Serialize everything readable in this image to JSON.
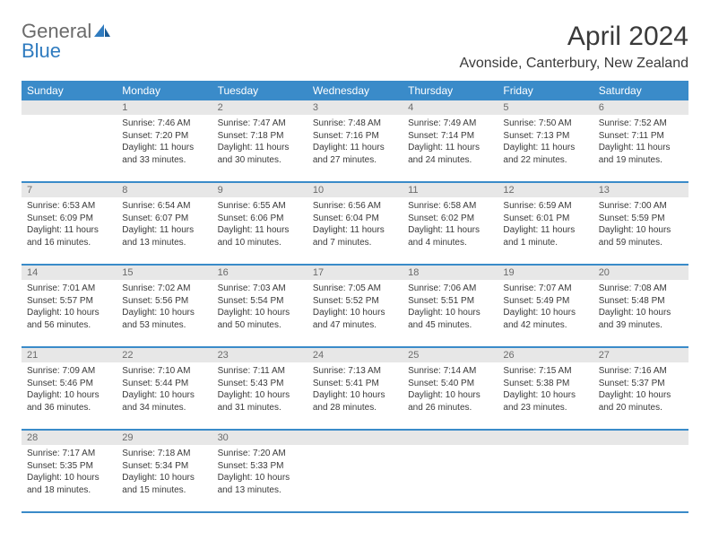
{
  "logo": {
    "general": "General",
    "blue": "Blue"
  },
  "title": "April 2024",
  "location": "Avonside, Canterbury, New Zealand",
  "colors": {
    "header_bg": "#3a8bc9",
    "header_text": "#ffffff",
    "daynum_bg": "#e7e7e7",
    "daynum_text": "#6b6b6b",
    "text": "#3a3a3a",
    "divider": "#3a8bc9"
  },
  "day_names": [
    "Sunday",
    "Monday",
    "Tuesday",
    "Wednesday",
    "Thursday",
    "Friday",
    "Saturday"
  ],
  "weeks": [
    {
      "nums": [
        "",
        "1",
        "2",
        "3",
        "4",
        "5",
        "6"
      ],
      "cells": [
        {
          "sunrise": "",
          "sunset": "",
          "daylight1": "",
          "daylight2": ""
        },
        {
          "sunrise": "Sunrise: 7:46 AM",
          "sunset": "Sunset: 7:20 PM",
          "daylight1": "Daylight: 11 hours",
          "daylight2": "and 33 minutes."
        },
        {
          "sunrise": "Sunrise: 7:47 AM",
          "sunset": "Sunset: 7:18 PM",
          "daylight1": "Daylight: 11 hours",
          "daylight2": "and 30 minutes."
        },
        {
          "sunrise": "Sunrise: 7:48 AM",
          "sunset": "Sunset: 7:16 PM",
          "daylight1": "Daylight: 11 hours",
          "daylight2": "and 27 minutes."
        },
        {
          "sunrise": "Sunrise: 7:49 AM",
          "sunset": "Sunset: 7:14 PM",
          "daylight1": "Daylight: 11 hours",
          "daylight2": "and 24 minutes."
        },
        {
          "sunrise": "Sunrise: 7:50 AM",
          "sunset": "Sunset: 7:13 PM",
          "daylight1": "Daylight: 11 hours",
          "daylight2": "and 22 minutes."
        },
        {
          "sunrise": "Sunrise: 7:52 AM",
          "sunset": "Sunset: 7:11 PM",
          "daylight1": "Daylight: 11 hours",
          "daylight2": "and 19 minutes."
        }
      ]
    },
    {
      "nums": [
        "7",
        "8",
        "9",
        "10",
        "11",
        "12",
        "13"
      ],
      "cells": [
        {
          "sunrise": "Sunrise: 6:53 AM",
          "sunset": "Sunset: 6:09 PM",
          "daylight1": "Daylight: 11 hours",
          "daylight2": "and 16 minutes."
        },
        {
          "sunrise": "Sunrise: 6:54 AM",
          "sunset": "Sunset: 6:07 PM",
          "daylight1": "Daylight: 11 hours",
          "daylight2": "and 13 minutes."
        },
        {
          "sunrise": "Sunrise: 6:55 AM",
          "sunset": "Sunset: 6:06 PM",
          "daylight1": "Daylight: 11 hours",
          "daylight2": "and 10 minutes."
        },
        {
          "sunrise": "Sunrise: 6:56 AM",
          "sunset": "Sunset: 6:04 PM",
          "daylight1": "Daylight: 11 hours",
          "daylight2": "and 7 minutes."
        },
        {
          "sunrise": "Sunrise: 6:58 AM",
          "sunset": "Sunset: 6:02 PM",
          "daylight1": "Daylight: 11 hours",
          "daylight2": "and 4 minutes."
        },
        {
          "sunrise": "Sunrise: 6:59 AM",
          "sunset": "Sunset: 6:01 PM",
          "daylight1": "Daylight: 11 hours",
          "daylight2": "and 1 minute."
        },
        {
          "sunrise": "Sunrise: 7:00 AM",
          "sunset": "Sunset: 5:59 PM",
          "daylight1": "Daylight: 10 hours",
          "daylight2": "and 59 minutes."
        }
      ]
    },
    {
      "nums": [
        "14",
        "15",
        "16",
        "17",
        "18",
        "19",
        "20"
      ],
      "cells": [
        {
          "sunrise": "Sunrise: 7:01 AM",
          "sunset": "Sunset: 5:57 PM",
          "daylight1": "Daylight: 10 hours",
          "daylight2": "and 56 minutes."
        },
        {
          "sunrise": "Sunrise: 7:02 AM",
          "sunset": "Sunset: 5:56 PM",
          "daylight1": "Daylight: 10 hours",
          "daylight2": "and 53 minutes."
        },
        {
          "sunrise": "Sunrise: 7:03 AM",
          "sunset": "Sunset: 5:54 PM",
          "daylight1": "Daylight: 10 hours",
          "daylight2": "and 50 minutes."
        },
        {
          "sunrise": "Sunrise: 7:05 AM",
          "sunset": "Sunset: 5:52 PM",
          "daylight1": "Daylight: 10 hours",
          "daylight2": "and 47 minutes."
        },
        {
          "sunrise": "Sunrise: 7:06 AM",
          "sunset": "Sunset: 5:51 PM",
          "daylight1": "Daylight: 10 hours",
          "daylight2": "and 45 minutes."
        },
        {
          "sunrise": "Sunrise: 7:07 AM",
          "sunset": "Sunset: 5:49 PM",
          "daylight1": "Daylight: 10 hours",
          "daylight2": "and 42 minutes."
        },
        {
          "sunrise": "Sunrise: 7:08 AM",
          "sunset": "Sunset: 5:48 PM",
          "daylight1": "Daylight: 10 hours",
          "daylight2": "and 39 minutes."
        }
      ]
    },
    {
      "nums": [
        "21",
        "22",
        "23",
        "24",
        "25",
        "26",
        "27"
      ],
      "cells": [
        {
          "sunrise": "Sunrise: 7:09 AM",
          "sunset": "Sunset: 5:46 PM",
          "daylight1": "Daylight: 10 hours",
          "daylight2": "and 36 minutes."
        },
        {
          "sunrise": "Sunrise: 7:10 AM",
          "sunset": "Sunset: 5:44 PM",
          "daylight1": "Daylight: 10 hours",
          "daylight2": "and 34 minutes."
        },
        {
          "sunrise": "Sunrise: 7:11 AM",
          "sunset": "Sunset: 5:43 PM",
          "daylight1": "Daylight: 10 hours",
          "daylight2": "and 31 minutes."
        },
        {
          "sunrise": "Sunrise: 7:13 AM",
          "sunset": "Sunset: 5:41 PM",
          "daylight1": "Daylight: 10 hours",
          "daylight2": "and 28 minutes."
        },
        {
          "sunrise": "Sunrise: 7:14 AM",
          "sunset": "Sunset: 5:40 PM",
          "daylight1": "Daylight: 10 hours",
          "daylight2": "and 26 minutes."
        },
        {
          "sunrise": "Sunrise: 7:15 AM",
          "sunset": "Sunset: 5:38 PM",
          "daylight1": "Daylight: 10 hours",
          "daylight2": "and 23 minutes."
        },
        {
          "sunrise": "Sunrise: 7:16 AM",
          "sunset": "Sunset: 5:37 PM",
          "daylight1": "Daylight: 10 hours",
          "daylight2": "and 20 minutes."
        }
      ]
    },
    {
      "nums": [
        "28",
        "29",
        "30",
        "",
        "",
        "",
        ""
      ],
      "cells": [
        {
          "sunrise": "Sunrise: 7:17 AM",
          "sunset": "Sunset: 5:35 PM",
          "daylight1": "Daylight: 10 hours",
          "daylight2": "and 18 minutes."
        },
        {
          "sunrise": "Sunrise: 7:18 AM",
          "sunset": "Sunset: 5:34 PM",
          "daylight1": "Daylight: 10 hours",
          "daylight2": "and 15 minutes."
        },
        {
          "sunrise": "Sunrise: 7:20 AM",
          "sunset": "Sunset: 5:33 PM",
          "daylight1": "Daylight: 10 hours",
          "daylight2": "and 13 minutes."
        },
        {
          "sunrise": "",
          "sunset": "",
          "daylight1": "",
          "daylight2": ""
        },
        {
          "sunrise": "",
          "sunset": "",
          "daylight1": "",
          "daylight2": ""
        },
        {
          "sunrise": "",
          "sunset": "",
          "daylight1": "",
          "daylight2": ""
        },
        {
          "sunrise": "",
          "sunset": "",
          "daylight1": "",
          "daylight2": ""
        }
      ]
    }
  ]
}
